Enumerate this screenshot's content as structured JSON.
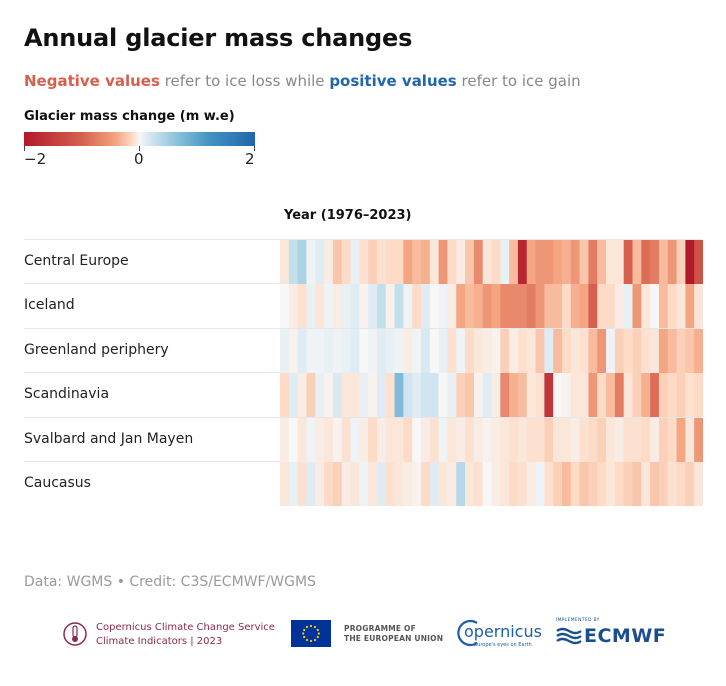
{
  "title": "Annual glacier mass changes",
  "subtitle": {
    "negative": "Negative values",
    "middle": "refer to ice loss while",
    "positive": "positive values",
    "end": "refer to ice gain"
  },
  "legend": {
    "title": "Glacier mass change (m w.e)",
    "ticks": [
      "−2",
      "0",
      "2"
    ]
  },
  "source": "Data: WGMS • Credit: C3S/ECMWF/WGMS",
  "footer": {
    "c3s_line1": "Copernicus Climate Change Service",
    "c3s_line2": "Climate Indicators | 2023",
    "eu_line1": "PROGRAMME OF",
    "eu_line2": "THE EUROPEAN UNION",
    "copernicus": "opernicus",
    "copernicus_sub": "Europe's eyes on Earth",
    "ecmwf_small": "IMPLEMENTED BY",
    "ecmwf": "ECMWF"
  },
  "colors": {
    "negative": "#d6604d",
    "positive": "#2166ac",
    "scale": [
      "#b2182b",
      "#d6604d",
      "#f4a582",
      "#fddbc7",
      "#f7f7f7",
      "#d1e5f0",
      "#92c5de",
      "#4393c3",
      "#2166ac"
    ]
  },
  "chart_data": {
    "type": "heatmap",
    "title": "Annual glacier mass changes",
    "xlabel": "Year (1976–2023)",
    "ylabel": "",
    "x": [
      1976,
      1977,
      1978,
      1979,
      1980,
      1981,
      1982,
      1983,
      1984,
      1985,
      1986,
      1987,
      1988,
      1989,
      1990,
      1991,
      1992,
      1993,
      1994,
      1995,
      1996,
      1997,
      1998,
      1999,
      2000,
      2001,
      2002,
      2003,
      2004,
      2005,
      2006,
      2007,
      2008,
      2009,
      2010,
      2011,
      2012,
      2013,
      2014,
      2015,
      2016,
      2017,
      2018,
      2019,
      2020,
      2021,
      2022,
      2023
    ],
    "value_range": [
      -2,
      2
    ],
    "colorbar_label": "Glacier mass change (m w.e)",
    "series": [
      {
        "name": "Central Europe",
        "values": [
          -0.3,
          0.6,
          0.8,
          0.1,
          0.3,
          -0.2,
          -0.7,
          -0.5,
          0.2,
          -0.4,
          -0.6,
          -0.4,
          -0.5,
          -0.5,
          -1.0,
          -0.8,
          -0.9,
          -0.3,
          -1.1,
          -0.5,
          -0.2,
          -0.7,
          -1.2,
          -0.3,
          -0.5,
          0.2,
          -0.8,
          -1.9,
          -1.0,
          -1.1,
          -1.1,
          -1.0,
          -0.9,
          -1.1,
          -0.7,
          -1.3,
          -0.8,
          -0.3,
          -0.3,
          -1.5,
          -0.8,
          -1.4,
          -1.3,
          -0.8,
          -1.1,
          -0.6,
          -2.0,
          -1.6
        ]
      },
      {
        "name": "Iceland",
        "values": [
          0.0,
          -0.2,
          -0.4,
          0.2,
          -0.3,
          0.1,
          -0.2,
          0.2,
          0.3,
          -0.1,
          0.3,
          0.6,
          -0.1,
          0.6,
          0.1,
          -0.5,
          0.3,
          0.0,
          0.1,
          -0.2,
          -1.0,
          -0.8,
          -0.9,
          -1.1,
          -1.0,
          -1.2,
          -1.2,
          -1.2,
          -1.3,
          -1.1,
          -0.8,
          -0.8,
          -0.5,
          -0.9,
          -1.0,
          -1.5,
          -0.5,
          -0.5,
          -0.2,
          0.2,
          -1.1,
          -0.3,
          0.0,
          -0.8,
          -0.5,
          -0.3,
          -1.0,
          -0.3
        ]
      },
      {
        "name": "Greenland periphery",
        "values": [
          0.2,
          -0.1,
          0.3,
          0.1,
          0.1,
          0.2,
          0.1,
          0.2,
          0.3,
          0.0,
          0.1,
          0.3,
          0.2,
          0.1,
          -0.2,
          0.1,
          0.4,
          0.0,
          0.2,
          -0.4,
          0.1,
          -0.5,
          -0.3,
          -0.2,
          -0.1,
          -0.6,
          -0.2,
          -0.4,
          -0.3,
          -0.7,
          0.3,
          -0.8,
          -0.5,
          -0.3,
          -0.4,
          -0.8,
          -1.1,
          0.1,
          -0.6,
          -0.5,
          -0.6,
          -0.4,
          -0.3,
          -1.0,
          -0.8,
          -0.6,
          -0.7,
          -0.9
        ]
      },
      {
        "name": "Scandinavia",
        "values": [
          -0.5,
          0.3,
          -0.2,
          -0.6,
          0.2,
          -0.1,
          0.4,
          -0.3,
          -0.3,
          0.2,
          -0.1,
          0.3,
          -0.4,
          1.1,
          0.5,
          0.3,
          0.5,
          0.5,
          0.0,
          0.2,
          -0.6,
          -0.7,
          -0.1,
          0.3,
          -0.2,
          -1.2,
          -0.9,
          -0.8,
          -0.3,
          -0.4,
          -1.8,
          0.0,
          -0.1,
          -0.3,
          -0.3,
          -1.1,
          -0.5,
          -0.8,
          -1.3,
          -0.3,
          -0.6,
          -0.9,
          -1.4,
          -0.6,
          -0.5,
          -0.6,
          -0.4,
          -0.5
        ]
      },
      {
        "name": "Svalbard and Jan Mayen",
        "values": [
          -0.2,
          0.0,
          -0.3,
          0.1,
          -0.2,
          -0.3,
          -0.1,
          -0.4,
          0.1,
          -0.2,
          -0.5,
          -0.2,
          -0.3,
          -0.3,
          -0.5,
          0.0,
          -0.2,
          -0.4,
          0.1,
          -0.3,
          -0.2,
          -0.4,
          -0.2,
          -0.1,
          -0.2,
          -0.3,
          -0.4,
          -0.3,
          -0.4,
          -0.4,
          -0.6,
          -0.3,
          -0.3,
          -0.2,
          -0.4,
          -0.5,
          -0.6,
          -0.3,
          -0.2,
          -0.4,
          -0.4,
          -0.5,
          -0.2,
          -0.6,
          -0.5,
          -1.0,
          -0.3,
          -1.1
        ]
      },
      {
        "name": "Caucasus",
        "values": [
          -0.3,
          0.2,
          -0.4,
          0.3,
          -0.2,
          -0.5,
          -0.6,
          -0.2,
          -0.3,
          0.1,
          -0.3,
          0.3,
          -0.4,
          -0.3,
          -0.2,
          -0.1,
          -0.5,
          0.3,
          -0.3,
          -0.2,
          0.7,
          -0.3,
          -0.4,
          0.0,
          -0.2,
          -0.3,
          -0.5,
          -0.4,
          -0.2,
          0.1,
          -0.4,
          -0.6,
          -0.8,
          -0.5,
          -0.7,
          -0.6,
          -0.5,
          -0.3,
          -0.5,
          -0.6,
          -0.7,
          -0.3,
          -0.7,
          -0.6,
          -0.4,
          -0.5,
          -0.6,
          -0.3
        ]
      }
    ]
  }
}
